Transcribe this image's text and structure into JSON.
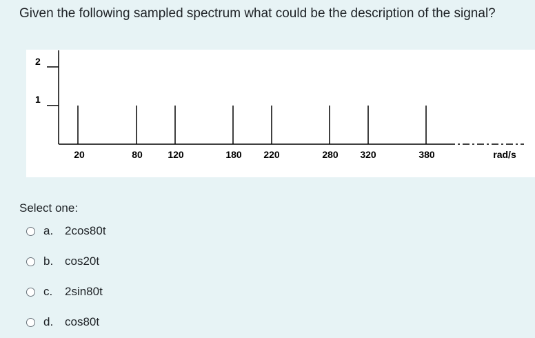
{
  "question": {
    "text": "Given the following sampled spectrum what could be the description of the signal?"
  },
  "figure": {
    "y_ticks": [
      "2",
      "1"
    ],
    "x_tick_labels": [
      "20",
      "80",
      "120",
      "180",
      "220",
      "280",
      "320",
      "380"
    ],
    "x_axis_unit": "rad/s",
    "impulse_heights": [
      2,
      1,
      1,
      1,
      1,
      1,
      1,
      1,
      1
    ]
  },
  "select": {
    "label": "Select one:",
    "options": [
      {
        "letter": "a.",
        "text": "2cos80t"
      },
      {
        "letter": "b.",
        "text": "cos20t"
      },
      {
        "letter": "c.",
        "text": "2sin80t"
      },
      {
        "letter": "d.",
        "text": "cos80t"
      }
    ]
  }
}
